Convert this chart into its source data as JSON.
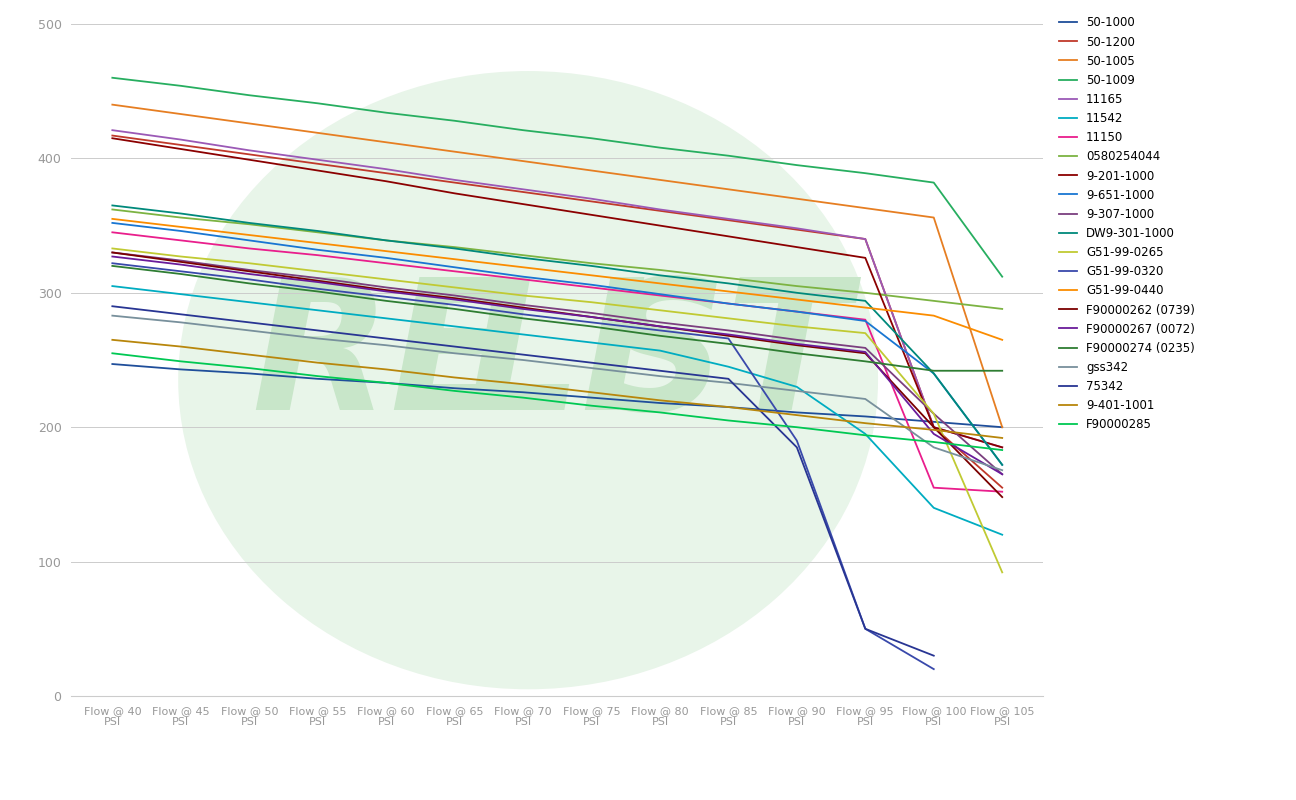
{
  "x_labels": [
    "Flow @ 40\nPSI",
    "Flow @ 45\nPSI",
    "Flow @ 50\nPSI",
    "Flow @ 55\nPSI",
    "Flow @ 60\nPSI",
    "Flow @ 65\nPSI",
    "Flow @ 70\nPSI",
    "Flow @ 75\nPSI",
    "Flow @ 80\nPSI",
    "Flow @ 85\nPSI",
    "Flow @ 90\nPSI",
    "Flow @ 95\nPSI",
    "Flow @ 100\nPSI",
    "Flow @ 105\nPSI"
  ],
  "x_values": [
    40,
    45,
    50,
    55,
    60,
    65,
    70,
    75,
    80,
    85,
    90,
    95,
    100,
    105
  ],
  "series": [
    {
      "label": "50-1000",
      "color": "#1f4e9a",
      "values": [
        247,
        243,
        240,
        236,
        233,
        229,
        226,
        222,
        218,
        215,
        211,
        208,
        204,
        200
      ]
    },
    {
      "label": "50-1200",
      "color": "#c0392b",
      "values": [
        417,
        410,
        403,
        396,
        389,
        382,
        375,
        368,
        361,
        354,
        347,
        340,
        200,
        155
      ]
    },
    {
      "label": "50-1005",
      "color": "#e67e22",
      "values": [
        440,
        433,
        426,
        419,
        412,
        405,
        398,
        391,
        384,
        377,
        370,
        363,
        356,
        200
      ]
    },
    {
      "label": "50-1009",
      "color": "#27ae60",
      "values": [
        460,
        454,
        447,
        441,
        434,
        428,
        421,
        415,
        408,
        402,
        395,
        389,
        382,
        312
      ]
    },
    {
      "label": "11165",
      "color": "#9b59b6",
      "values": [
        421,
        414,
        406,
        399,
        392,
        384,
        377,
        370,
        362,
        355,
        348,
        340,
        200,
        185
      ]
    },
    {
      "label": "11542",
      "color": "#00acc1",
      "values": [
        305,
        299,
        293,
        287,
        281,
        275,
        269,
        263,
        257,
        245,
        230,
        195,
        140,
        120
      ]
    },
    {
      "label": "11150",
      "color": "#e91e8c",
      "values": [
        345,
        339,
        333,
        328,
        322,
        316,
        310,
        304,
        298,
        292,
        286,
        280,
        155,
        152
      ]
    },
    {
      "label": "0580254044",
      "color": "#7cb342",
      "values": [
        362,
        356,
        351,
        345,
        339,
        334,
        328,
        322,
        317,
        311,
        305,
        300,
        294,
        288
      ]
    },
    {
      "label": "9-201-1000",
      "color": "#8b0000",
      "values": [
        415,
        407,
        399,
        391,
        383,
        374,
        366,
        358,
        350,
        342,
        334,
        326,
        200,
        185
      ]
    },
    {
      "label": "9-651-1000",
      "color": "#1976d2",
      "values": [
        352,
        346,
        339,
        332,
        326,
        319,
        312,
        306,
        299,
        292,
        286,
        279,
        240,
        172
      ]
    },
    {
      "label": "9-307-1000",
      "color": "#7b3f7f",
      "values": [
        330,
        324,
        317,
        311,
        304,
        298,
        291,
        285,
        278,
        272,
        265,
        259,
        210,
        165
      ]
    },
    {
      "label": "DW9-301-1000",
      "color": "#00897b",
      "values": [
        365,
        359,
        352,
        346,
        339,
        333,
        326,
        320,
        313,
        307,
        300,
        294,
        240,
        172
      ]
    },
    {
      "label": "G51-99-0265",
      "color": "#c0ca33",
      "values": [
        333,
        327,
        322,
        316,
        310,
        304,
        298,
        293,
        287,
        281,
        275,
        270,
        210,
        92
      ]
    },
    {
      "label": "G51-99-0320",
      "color": "#3949ab",
      "values": [
        322,
        316,
        310,
        303,
        297,
        291,
        284,
        278,
        272,
        266,
        190,
        50,
        20,
        null
      ]
    },
    {
      "label": "G51-99-0440",
      "color": "#fb8c00",
      "values": [
        355,
        349,
        343,
        337,
        331,
        325,
        319,
        313,
        307,
        301,
        295,
        289,
        283,
        265
      ]
    },
    {
      "label": "F90000262 (0739)",
      "color": "#7b0000",
      "values": [
        330,
        323,
        316,
        309,
        302,
        296,
        289,
        282,
        275,
        268,
        261,
        255,
        200,
        148
      ]
    },
    {
      "label": "F90000267 (0072)",
      "color": "#6a1b9a",
      "values": [
        327,
        321,
        314,
        308,
        301,
        295,
        288,
        282,
        275,
        269,
        262,
        256,
        195,
        165
      ]
    },
    {
      "label": "F90000274 (0235)",
      "color": "#2e7d32",
      "values": [
        320,
        314,
        307,
        301,
        294,
        288,
        281,
        275,
        268,
        262,
        255,
        249,
        242,
        242
      ]
    },
    {
      "label": "gss342",
      "color": "#78909c",
      "values": [
        283,
        278,
        272,
        266,
        261,
        255,
        250,
        244,
        238,
        233,
        227,
        221,
        185,
        168
      ]
    },
    {
      "label": "75342",
      "color": "#283593",
      "values": [
        290,
        284,
        278,
        272,
        266,
        260,
        254,
        248,
        242,
        236,
        185,
        50,
        30,
        null
      ]
    },
    {
      "label": "9-401-1001",
      "color": "#b8860b",
      "values": [
        265,
        260,
        254,
        248,
        243,
        237,
        232,
        226,
        220,
        215,
        209,
        203,
        198,
        192
      ]
    },
    {
      "label": "F90000285",
      "color": "#00c853",
      "values": [
        255,
        249,
        244,
        238,
        233,
        227,
        222,
        216,
        211,
        205,
        200,
        194,
        189,
        183
      ]
    }
  ],
  "ylim": [
    0,
    500
  ],
  "yticks": [
    0,
    100,
    200,
    300,
    400,
    500
  ],
  "background_color": "#ffffff",
  "grid_color": "#cccccc",
  "tick_color": "#999999"
}
